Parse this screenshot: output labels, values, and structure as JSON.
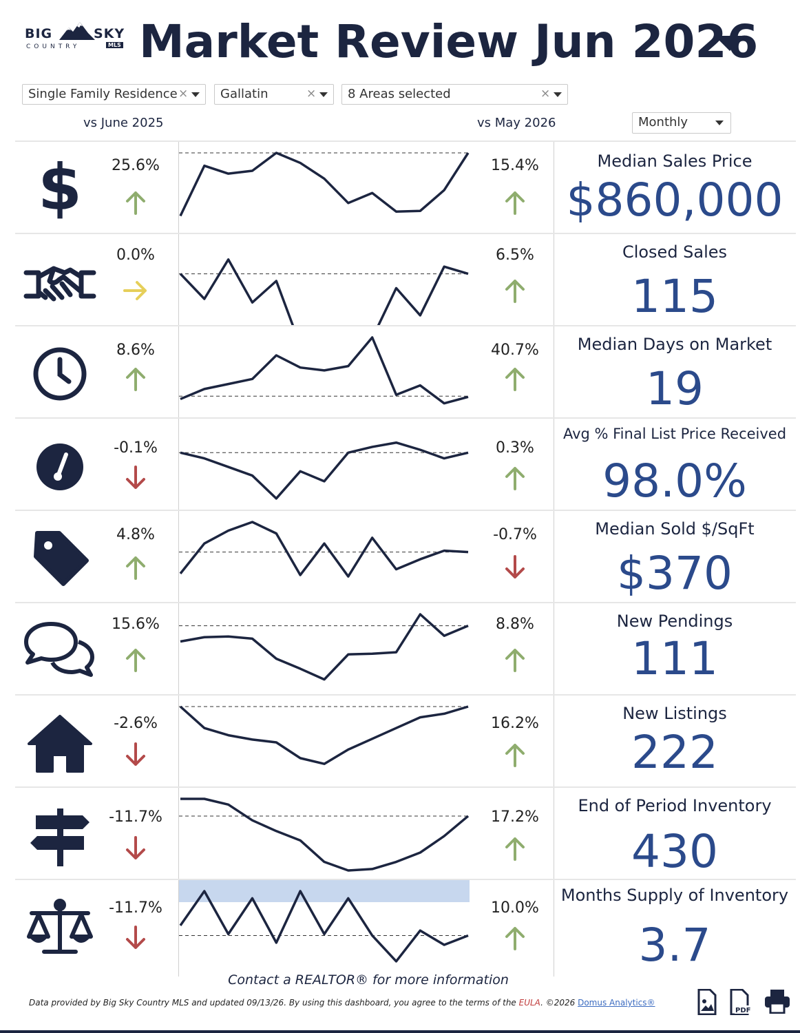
{
  "header": {
    "logo_big": "BIG",
    "logo_sky": "SKY",
    "logo_country": "COUNTRY",
    "logo_mls": "MLS",
    "title": "Market Review  Jun 2026"
  },
  "filters": {
    "property_type": "Single Family Residence",
    "county": "Gallatin",
    "areas": "8 Areas selected",
    "clear_symbol": "×"
  },
  "comparisons": {
    "left_label": "vs June 2025",
    "right_label": "vs May 2026",
    "period_select": "Monthly"
  },
  "colors": {
    "navy": "#1c2540",
    "value_blue": "#2b4a8b",
    "up_green": "#8fad6e",
    "down_red": "#b34a4a",
    "flat_yellow": "#e6cf5a",
    "highlight_band": "#c7d7ee"
  },
  "metrics": [
    {
      "icon": "dollar-icon",
      "title": "Median Sales Price",
      "value": "$860,000",
      "yoy": "25.6%",
      "yoy_dir": "up",
      "mom": "15.4%",
      "mom_dir": "up",
      "spark": [
        0.88,
        0.18,
        0.29,
        0.25,
        0.0,
        0.14,
        0.36,
        0.7,
        0.56,
        0.82,
        0.81,
        0.52,
        0.0
      ],
      "baseline": 0.0
    },
    {
      "icon": "handshake-icon",
      "title": "Closed Sales",
      "value": "115",
      "yoy": "0.0%",
      "yoy_dir": "flat",
      "mom": "6.5%",
      "mom_dir": "up",
      "spark": [
        0.4,
        0.75,
        0.2,
        0.8,
        0.5,
        1.4,
        1.25,
        1.8,
        1.3,
        0.6,
        0.98,
        0.3,
        0.4
      ],
      "baseline": 0.4
    },
    {
      "icon": "clock-icon",
      "title": "Median Days on Market",
      "value": "19",
      "yoy": "8.6%",
      "yoy_dir": "up",
      "mom": "40.7%",
      "mom_dir": "up",
      "spark": [
        0.86,
        0.72,
        0.65,
        0.58,
        0.25,
        0.42,
        0.46,
        0.4,
        0.0,
        0.8,
        0.67,
        0.92,
        0.83
      ],
      "baseline": 0.82
    },
    {
      "icon": "gauge-icon",
      "title": "Avg % Final List Price Received",
      "value": "98.0%",
      "yoy": "-0.1%",
      "yoy_dir": "down",
      "mom": "0.3%",
      "mom_dir": "up",
      "spark": [
        0.32,
        0.4,
        0.52,
        0.64,
        0.96,
        0.58,
        0.72,
        0.32,
        0.24,
        0.18,
        0.28,
        0.4,
        0.32
      ],
      "baseline": 0.32
    },
    {
      "icon": "tag-icon",
      "title": "Median Sold $/SqFt",
      "value": "$370",
      "yoy": "4.8%",
      "yoy_dir": "up",
      "mom": "-0.7%",
      "mom_dir": "down",
      "spark": [
        0.72,
        0.3,
        0.12,
        0.0,
        0.16,
        0.74,
        0.3,
        0.76,
        0.22,
        0.66,
        0.52,
        0.4,
        0.42
      ],
      "baseline": 0.42
    },
    {
      "icon": "chat-icon",
      "title": "New Pendings",
      "value": "111",
      "yoy": "15.6%",
      "yoy_dir": "up",
      "mom": "8.8%",
      "mom_dir": "up",
      "spark": [
        0.38,
        0.32,
        0.31,
        0.34,
        0.62,
        0.76,
        0.91,
        0.56,
        0.55,
        0.53,
        0.0,
        0.3,
        0.16
      ],
      "baseline": 0.16
    },
    {
      "icon": "home-icon",
      "title": "New Listings",
      "value": "222",
      "yoy": "-2.6%",
      "yoy_dir": "down",
      "mom": "16.2%",
      "mom_dir": "up",
      "spark": [
        0.0,
        0.3,
        0.4,
        0.46,
        0.5,
        0.72,
        0.8,
        0.6,
        0.45,
        0.3,
        0.15,
        0.1,
        0.0
      ],
      "baseline": 0.0
    },
    {
      "icon": "signpost-icon",
      "title": "End of Period Inventory",
      "value": "430",
      "yoy": "-11.7%",
      "yoy_dir": "down",
      "mom": "17.2%",
      "mom_dir": "up",
      "spark": [
        0.0,
        0.0,
        0.08,
        0.3,
        0.45,
        0.58,
        0.88,
        1.0,
        0.98,
        0.88,
        0.75,
        0.52,
        0.24
      ],
      "baseline": 0.24
    },
    {
      "icon": "scale-icon",
      "title": "Months Supply of Inventory",
      "value": "3.7",
      "yoy": "-11.7%",
      "yoy_dir": "down",
      "mom": "10.0%",
      "mom_dir": "up",
      "spark": [
        0.48,
        0.0,
        0.6,
        0.1,
        0.72,
        0.0,
        0.6,
        0.1,
        0.62,
        0.98,
        0.55,
        0.75,
        0.62
      ],
      "baseline": 0.62
    }
  ],
  "footer": {
    "contact": "Contact a REALTOR® for more information",
    "note_prefix": "Data provided by Big Sky Country MLS and updated 09/13/26.  By using this dashboard, you agree to the terms of the ",
    "eula": "EULA",
    "note_mid": ".  ©2026 ",
    "domus": "Domus Analytics®"
  }
}
